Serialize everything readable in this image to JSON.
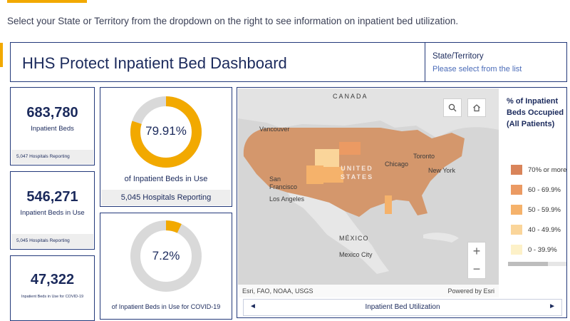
{
  "instruction": "Select your State or Territory from the dropdown on the right to see information on inpatient bed utilization.",
  "header": {
    "title": "HHS Protect Inpatient Bed Dashboard",
    "state_label": "State/Territory",
    "state_placeholder": "Please select from the list"
  },
  "stats": [
    {
      "value": "683,780",
      "label": "Inpatient Beds",
      "footer": "5,047 Hospitals Reporting"
    },
    {
      "value": "546,271",
      "label": "Inpatient Beds in Use",
      "footer": "5,045 Hospitals Reporting"
    },
    {
      "value": "47,322",
      "label": "Inpatient Beds in Use for COVID-19",
      "footer": ""
    }
  ],
  "donuts": [
    {
      "percent_text": "79.91%",
      "fraction": 0.7991,
      "caption": "of Inpatient Beds in Use",
      "footer": "5,045 Hospitals Reporting"
    },
    {
      "percent_text": "7.2%",
      "fraction": 0.072,
      "caption": "of Inpatient Beds in Use for COVID-19",
      "footer": ""
    }
  ],
  "colors": {
    "accent": "#f2a900",
    "navy": "#1b2a5c",
    "donut_track": "#d9d9d9"
  },
  "map": {
    "labels": {
      "canada": "CANADA",
      "vancouver": "Vancouver",
      "toronto": "Toronto",
      "chicago": "Chicago",
      "new_york": "New York",
      "san_francisco": "San Francisco",
      "los_angeles": "Los Angeles",
      "united_states": "UNITED STATES",
      "mexico": "MÉXICO",
      "mexico_city": "Mexico City"
    },
    "attribution_left": "Esri, FAO, NOAA, USGS",
    "attribution_right": "Powered by Esri",
    "tools": {
      "search_icon": "search-icon",
      "home_icon": "home-icon"
    },
    "zoom_in": "+",
    "zoom_out": "−"
  },
  "legend": {
    "title": "% of Inpatient Beds Occupied (All Patients)",
    "items": [
      {
        "label": "70% or more",
        "color": "#d9845a"
      },
      {
        "label": "60 - 69.9%",
        "color": "#eb9a63"
      },
      {
        "label": "50 - 59.9%",
        "color": "#f5b26b"
      },
      {
        "label": "40 - 49.9%",
        "color": "#fad59a"
      },
      {
        "label": "0 - 39.9%",
        "color": "#fdf1c8"
      }
    ]
  },
  "tab": {
    "label": "Inpatient Bed Utilization",
    "prev": "◄",
    "next": "►"
  }
}
